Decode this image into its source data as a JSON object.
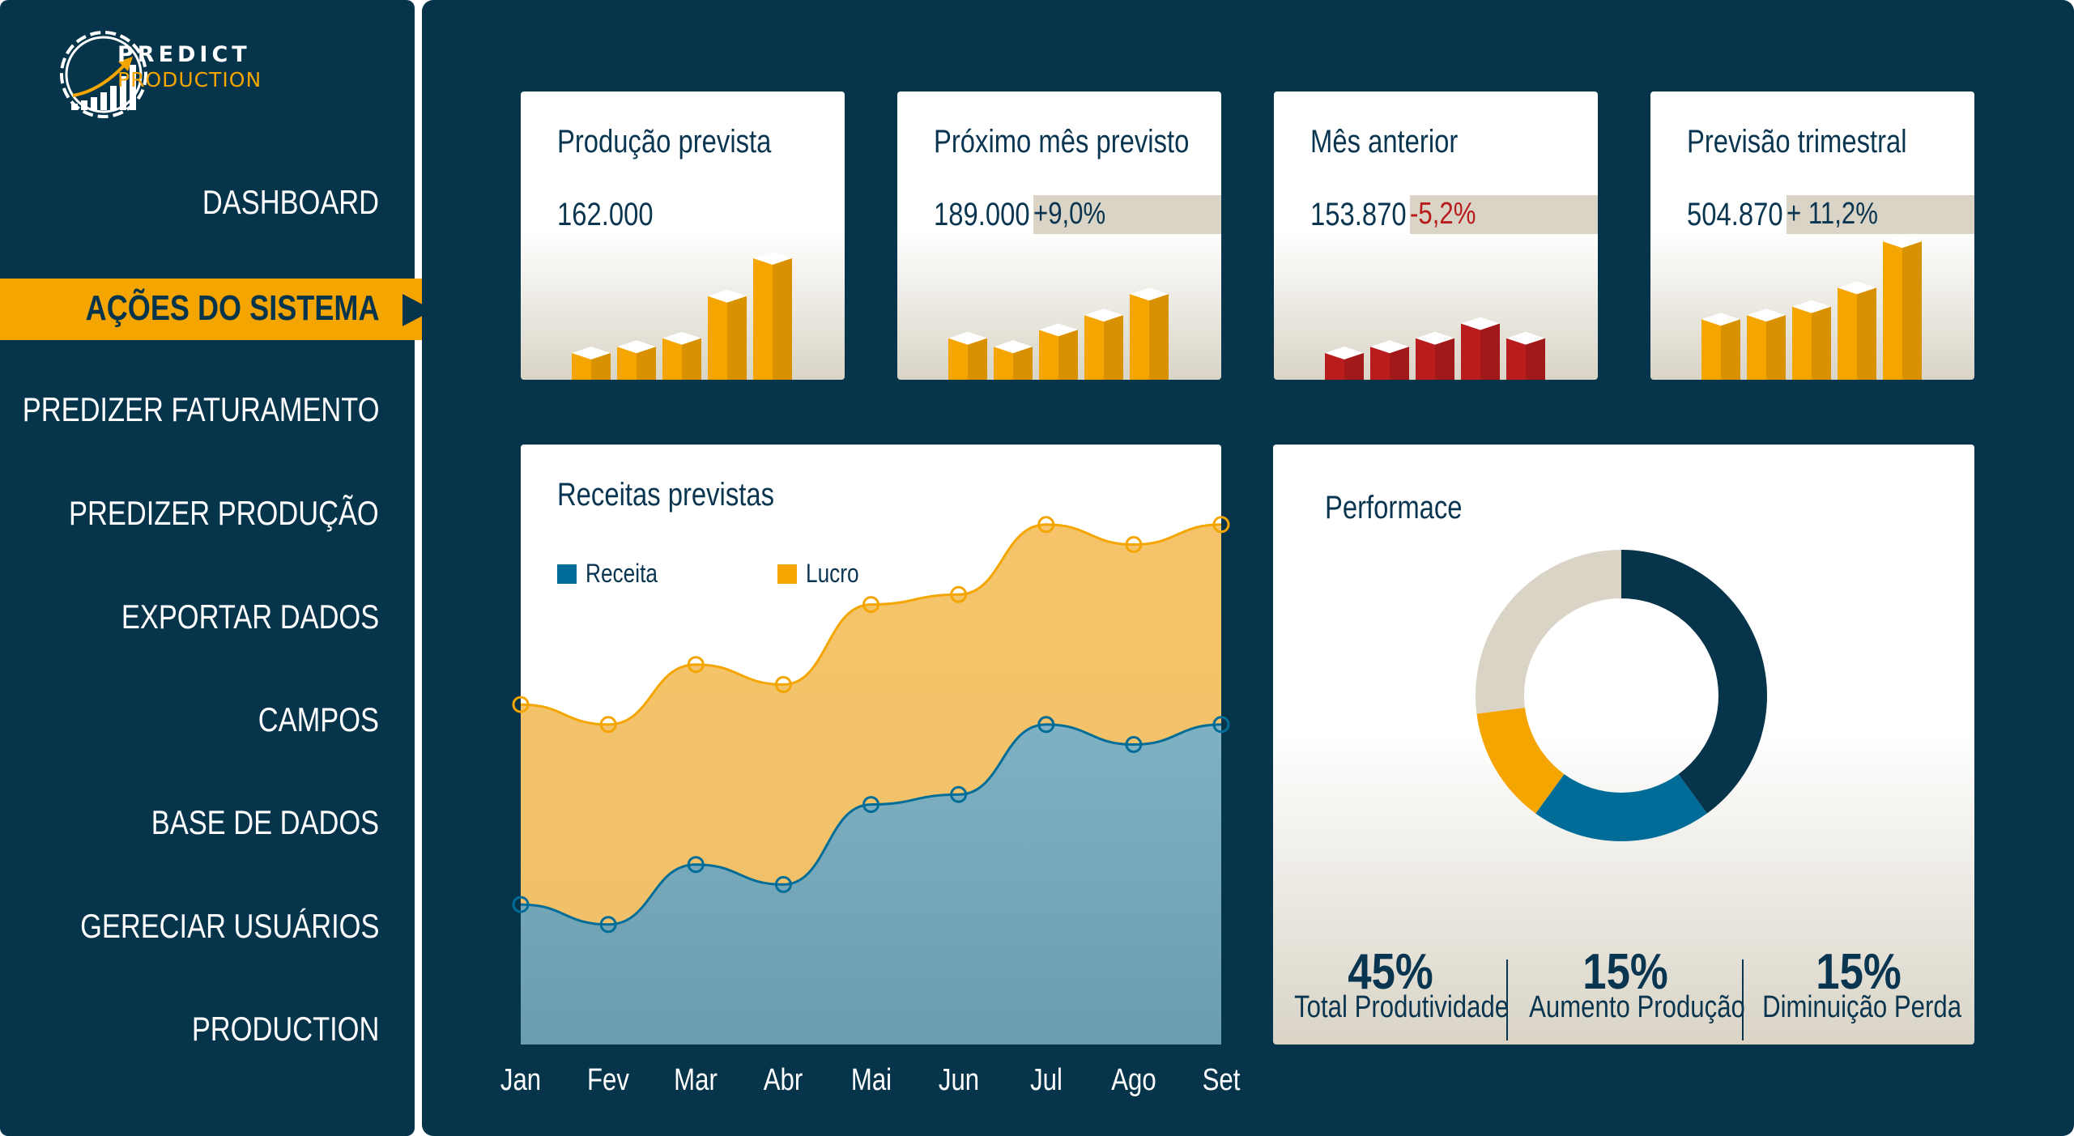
{
  "brand": {
    "name_line1": "PREDICT",
    "name_line2": "PRODUCTION",
    "logo_icon": "gear-growth-chart-icon",
    "colors": {
      "navy": "#06344b",
      "orange": "#f5a500",
      "blue": "#006d98",
      "red": "#b81c1c",
      "beige": "#d9d4c6"
    }
  },
  "sidebar": {
    "items": [
      {
        "label": "DASHBOARD",
        "active": false
      },
      {
        "label": "AÇÕES DO SISTEMA",
        "active": true
      },
      {
        "label": "PREDIZER FATURAMENTO",
        "active": false
      },
      {
        "label": "PREDIZER PRODUÇÃO",
        "active": false
      },
      {
        "label": "EXPORTAR DADOS",
        "active": false
      },
      {
        "label": "CAMPOS",
        "active": false
      },
      {
        "label": "BASE DE DADOS",
        "active": false
      },
      {
        "label": "GERECIAR USUÁRIOS",
        "active": false
      },
      {
        "label": "PRODUCTION",
        "active": false
      }
    ]
  },
  "kpis": [
    {
      "title": "Produção prevista",
      "value": "162.000",
      "change": "",
      "change_color": "",
      "bar_color": "#f5a500",
      "bars": [
        0.15,
        0.18,
        0.22,
        0.42,
        0.6
      ]
    },
    {
      "title": "Próximo mês previsto",
      "value": "189.000",
      "change": "+9,0%",
      "change_color": "#0a3550",
      "bar_color": "#f5a500",
      "bars": [
        0.22,
        0.18,
        0.26,
        0.33,
        0.43
      ]
    },
    {
      "title": "Mês anterior",
      "value": "153.870",
      "change": "-5,2%",
      "change_color": "#b81c1c",
      "bar_color": "#b81c1c",
      "bars": [
        0.15,
        0.18,
        0.22,
        0.29,
        0.22
      ]
    },
    {
      "title": "Previsão trimestral",
      "value": "504.870",
      "change": "+ 11,2%",
      "change_color": "#0a3550",
      "bar_color": "#f5a500",
      "bars": [
        0.31,
        0.33,
        0.37,
        0.46,
        0.68
      ]
    }
  ],
  "revenue_card": {
    "title": "Receitas previstas",
    "legend": [
      {
        "label": "Receita",
        "color": "#006d98"
      },
      {
        "label": "Lucro",
        "color": "#f5a500"
      }
    ]
  },
  "chart_data": {
    "type": "area",
    "categories": [
      "Jan",
      "Fev",
      "Mar",
      "Abr",
      "Mai",
      "Jun",
      "Jul",
      "Ago",
      "Set"
    ],
    "series": [
      {
        "name": "Receita",
        "values": [
          14,
          12,
          18,
          16,
          24,
          25,
          32,
          30,
          32
        ]
      },
      {
        "name": "Lucro",
        "values": [
          34,
          32,
          38,
          36,
          44,
          45,
          52,
          50,
          52
        ]
      }
    ],
    "ylim": [
      0,
      60
    ],
    "xlabel": "",
    "ylabel": "",
    "grid": false,
    "legend_placement": "top-left"
  },
  "performance": {
    "title": "Performace",
    "donut": {
      "segments": [
        {
          "color": "#06344b",
          "value": 40
        },
        {
          "color": "#006d98",
          "value": 20
        },
        {
          "color": "#f5a500",
          "value": 13
        },
        {
          "color": "#d9d4c6",
          "value": 27
        }
      ]
    },
    "stats": [
      {
        "value": "45%",
        "label": "Total Produtividade"
      },
      {
        "value": "15%",
        "label": "Aumento Produção"
      },
      {
        "value": "15%",
        "label": "Diminuição Perda"
      }
    ]
  }
}
